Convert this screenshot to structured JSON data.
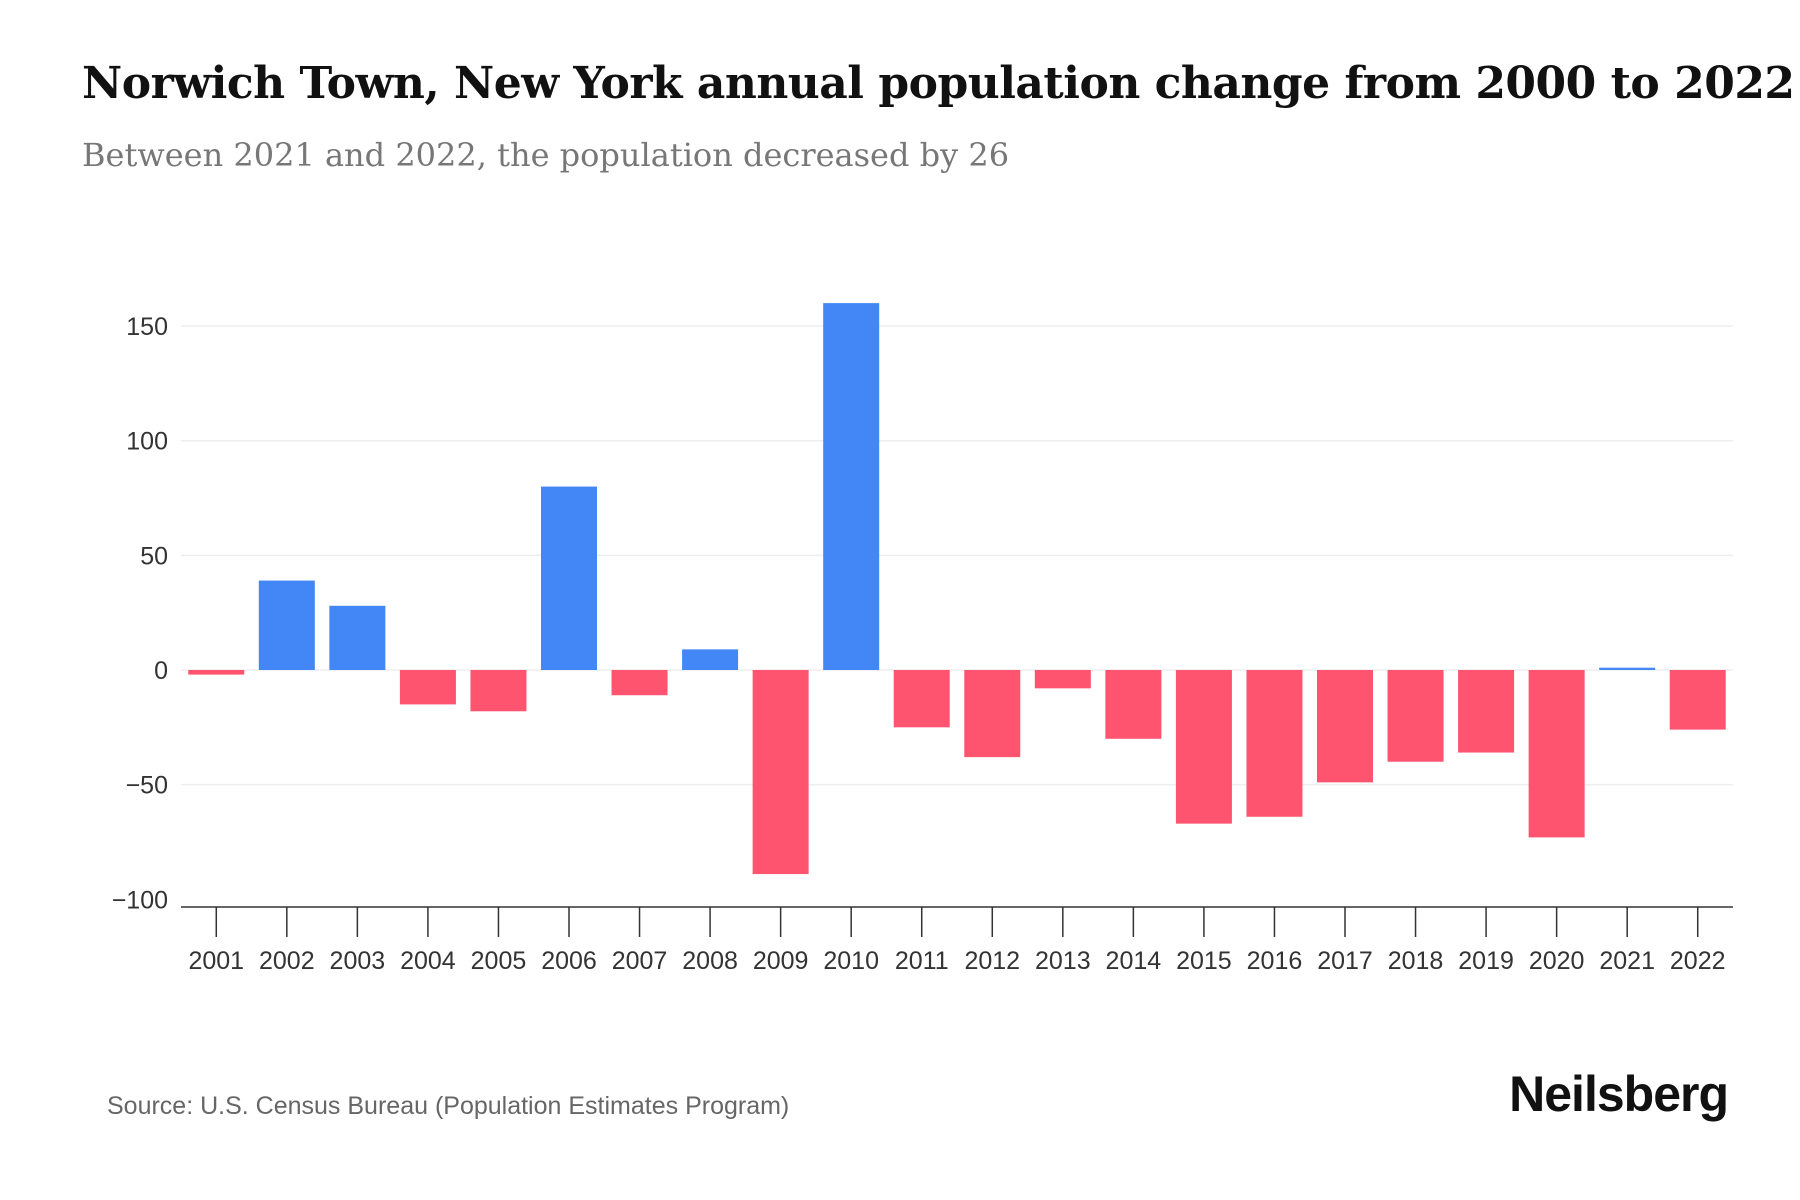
{
  "title": "Norwich Town, New York annual population change from 2000 to 2022",
  "subtitle": "Between 2021 and 2022, the population decreased by 26",
  "source": "Source: U.S. Census Bureau (Population Estimates Program)",
  "logo": "Neilsberg",
  "colors": {
    "positive": "#4287f5",
    "negative": "#ff546f"
  },
  "chart_data": {
    "type": "bar",
    "title": "Norwich Town, New York annual population change from 2000 to 2022",
    "xlabel": "",
    "ylabel": "",
    "categories": [
      "2001",
      "2002",
      "2003",
      "2004",
      "2005",
      "2006",
      "2007",
      "2008",
      "2009",
      "2010",
      "2011",
      "2012",
      "2013",
      "2014",
      "2015",
      "2016",
      "2017",
      "2018",
      "2019",
      "2020",
      "2021",
      "2022"
    ],
    "values": [
      -2,
      39,
      28,
      -15,
      -18,
      80,
      -11,
      9,
      -89,
      160,
      -25,
      -38,
      -8,
      -30,
      -67,
      -64,
      -49,
      -40,
      -36,
      -73,
      1,
      -26
    ],
    "yticks": [
      -100,
      -50,
      0,
      50,
      100,
      150
    ],
    "ytick_labels": [
      "−100",
      "−50",
      "0",
      "50",
      "100",
      "150"
    ],
    "ylim": [
      -103,
      160
    ],
    "grid": true
  }
}
